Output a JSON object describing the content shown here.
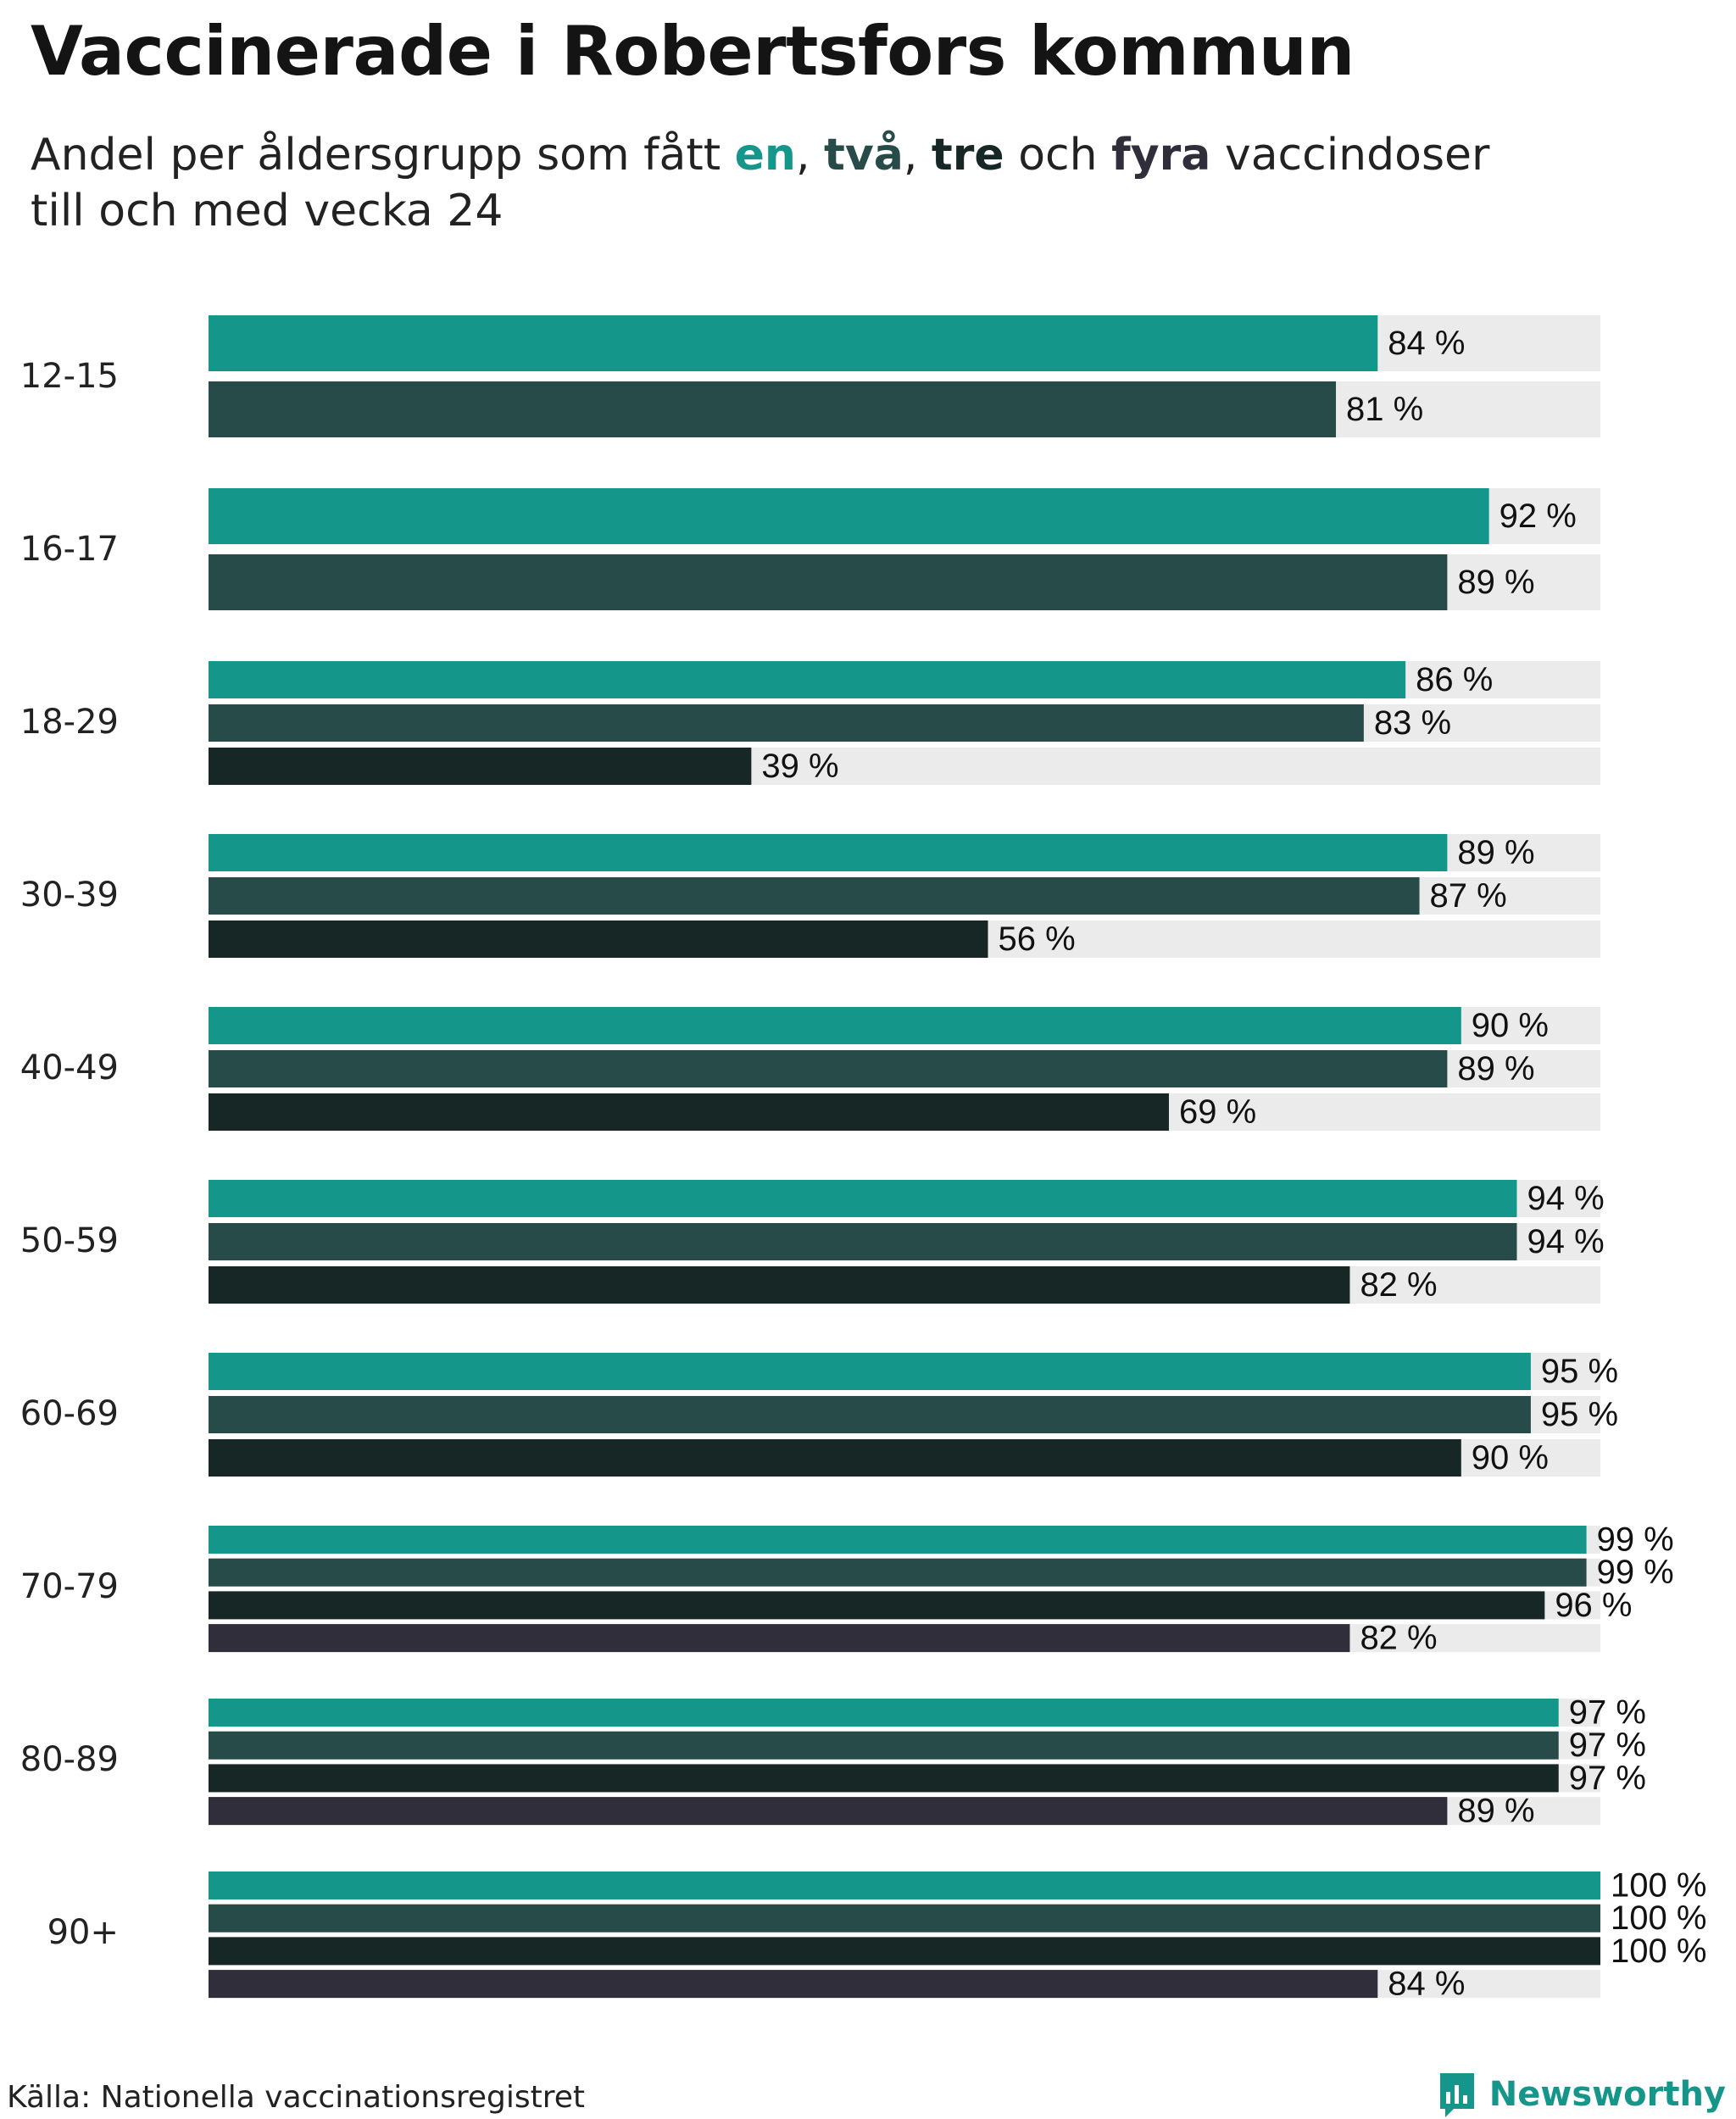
{
  "title": "Vaccinerade i Robertsfors kommun",
  "subtitle": {
    "prefix": "Andel per åldersgrupp som fått ",
    "dose1": "en",
    "sep1": ", ",
    "dose2": "två",
    "sep2": ", ",
    "dose3": "tre",
    "sep3": " och ",
    "dose4": "fyra",
    "suffix": " vaccindoser",
    "line2": "till och med vecka 24"
  },
  "colors": {
    "dose1": "#14968a",
    "dose2": "#264b48",
    "dose3": "#172725",
    "dose4": "#302e3b",
    "track": "#ebebeb"
  },
  "chart_data": {
    "type": "bar",
    "orientation": "horizontal",
    "title": "Vaccinerade i Robertsfors kommun",
    "xlim": [
      0,
      100
    ],
    "unit": "%",
    "series_names": [
      "en",
      "två",
      "tre",
      "fyra"
    ],
    "groups": [
      {
        "label": "12-15",
        "values": [
          84,
          81
        ]
      },
      {
        "label": "16-17",
        "values": [
          92,
          89
        ]
      },
      {
        "label": "18-29",
        "values": [
          86,
          83,
          39
        ]
      },
      {
        "label": "30-39",
        "values": [
          89,
          87,
          56
        ]
      },
      {
        "label": "40-49",
        "values": [
          90,
          89,
          69
        ]
      },
      {
        "label": "50-59",
        "values": [
          94,
          94,
          82
        ]
      },
      {
        "label": "60-69",
        "values": [
          95,
          95,
          90
        ]
      },
      {
        "label": "70-79",
        "values": [
          99,
          99,
          96,
          82
        ]
      },
      {
        "label": "80-89",
        "values": [
          97,
          97,
          97,
          89
        ]
      },
      {
        "label": "90+",
        "values": [
          100,
          100,
          100,
          84
        ]
      }
    ]
  },
  "footer": {
    "source": "Källa: Nationella vaccinationsregistret",
    "brand": "Newsworthy"
  }
}
